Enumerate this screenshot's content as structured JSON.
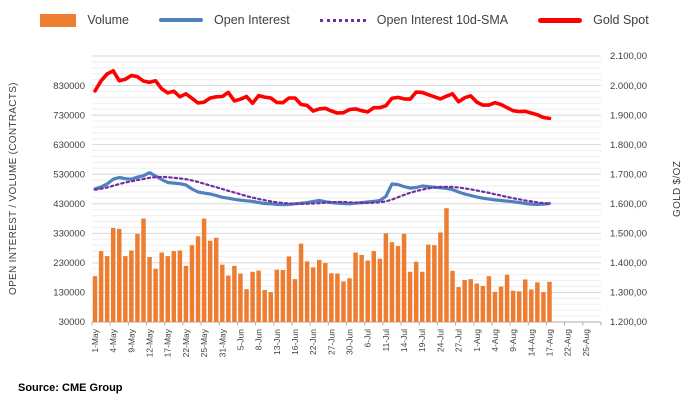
{
  "source": "Source: CME Group",
  "colors": {
    "grid_major": "#D8D8D8",
    "grid_minor": "#EEEEEE",
    "axis_line": "#ADADAD",
    "tick_text": "#404040",
    "legend_text": "#3f3f3f"
  },
  "chart_data": {
    "type": "combo",
    "title": "",
    "legend_position": "top",
    "grid": true,
    "x_axis_total_slots": 84,
    "x_tick_every": 3,
    "x_tick_labels": [
      "1-May",
      "4-May",
      "9-May",
      "12-May",
      "17-May",
      "22-May",
      "25-May",
      "31-May",
      "5-Jun",
      "8-Jun",
      "13-Jun",
      "16-Jun",
      "22-Jun",
      "27-Jun",
      "30-Jun",
      "6-Jul",
      "11-Jul",
      "14-Jul",
      "19-Jul",
      "24-Jul",
      "27-Jul",
      "1-Aug",
      "4-Aug",
      "9-Aug",
      "14-Aug",
      "17-Aug",
      "22-Aug",
      "25-Aug"
    ],
    "x": [
      "1-May",
      "2-May",
      "3-May",
      "4-May",
      "5-May",
      "8-May",
      "9-May",
      "10-May",
      "11-May",
      "12-May",
      "15-May",
      "16-May",
      "17-May",
      "18-May",
      "19-May",
      "22-May",
      "23-May",
      "24-May",
      "25-May",
      "26-May",
      "30-May",
      "31-May",
      "1-Jun",
      "2-Jun",
      "5-Jun",
      "6-Jun",
      "7-Jun",
      "8-Jun",
      "9-Jun",
      "12-Jun",
      "13-Jun",
      "14-Jun",
      "15-Jun",
      "16-Jun",
      "20-Jun",
      "21-Jun",
      "22-Jun",
      "23-Jun",
      "26-Jun",
      "27-Jun",
      "28-Jun",
      "29-Jun",
      "30-Jun",
      "3-Jul",
      "5-Jul",
      "6-Jul",
      "7-Jul",
      "10-Jul",
      "11-Jul",
      "12-Jul",
      "13-Jul",
      "14-Jul",
      "17-Jul",
      "18-Jul",
      "19-Jul",
      "20-Jul",
      "21-Jul",
      "24-Jul",
      "25-Jul",
      "26-Jul",
      "27-Jul",
      "28-Jul",
      "31-Jul",
      "1-Aug",
      "2-Aug",
      "3-Aug",
      "4-Aug",
      "7-Aug",
      "8-Aug",
      "9-Aug",
      "10-Aug",
      "11-Aug",
      "14-Aug",
      "15-Aug",
      "16-Aug",
      "17-Aug"
    ],
    "y_left": {
      "label": "OPEN INTEREST / VOLUME (CONTRACTS)",
      "min": 30000,
      "max": 930000,
      "major_step": 100000,
      "minor_step": 20000,
      "tick_labels": [
        "830000",
        "730000",
        "630000",
        "530000",
        "430000",
        "330000",
        "230000",
        "130000",
        "30000"
      ]
    },
    "y_right": {
      "label": "GOLD $/OZ",
      "min": 1200,
      "max": 2100,
      "major_step": 100,
      "tick_labels": [
        "2.100,00",
        "2.000,00",
        "1.900,00",
        "1.800,00",
        "1.700,00",
        "1.600,00",
        "1.500,00",
        "1.400,00",
        "1.300,00",
        "1.200,00"
      ]
    },
    "series": [
      {
        "name": "Volume",
        "type": "bar",
        "axis": "left",
        "color": "#ED7D31",
        "values": [
          185000,
          270000,
          253000,
          348000,
          345000,
          253000,
          272000,
          328000,
          380000,
          250000,
          210000,
          265000,
          253000,
          270000,
          272000,
          220000,
          290000,
          320000,
          380000,
          305000,
          315000,
          224000,
          187000,
          220000,
          194000,
          141000,
          200000,
          204000,
          138000,
          131000,
          207000,
          206000,
          252000,
          175000,
          295000,
          235000,
          215000,
          240000,
          230000,
          195000,
          194000,
          167000,
          178000,
          265000,
          257000,
          238000,
          270000,
          244000,
          330000,
          300000,
          287000,
          328000,
          200000,
          234000,
          200000,
          292000,
          290000,
          333000,
          415000,
          203000,
          148000,
          172000,
          175000,
          160000,
          152000,
          185000,
          132000,
          150000,
          190000,
          136000,
          134000,
          174000,
          140000,
          164000,
          131000,
          166000
        ]
      },
      {
        "name": "Open Interest",
        "type": "line",
        "axis": "left",
        "color": "#4F81BD",
        "values": [
          480000,
          487000,
          497000,
          513000,
          519000,
          515000,
          513000,
          520000,
          525000,
          535000,
          524000,
          512000,
          502000,
          500000,
          498000,
          494000,
          480000,
          470000,
          466000,
          463000,
          458000,
          452000,
          449000,
          445000,
          442000,
          440000,
          438000,
          434000,
          431000,
          430000,
          428000,
          427000,
          428000,
          430000,
          432000,
          434000,
          438000,
          441000,
          437000,
          434000,
          432000,
          431000,
          430000,
          432000,
          434000,
          436000,
          438000,
          441000,
          455000,
          497000,
          495000,
          488000,
          483000,
          485000,
          490000,
          488000,
          486000,
          484000,
          482000,
          478000,
          470000,
          463000,
          458000,
          453000,
          449000,
          446000,
          443000,
          441000,
          439000,
          437000,
          434000,
          431000,
          429000,
          428000,
          429000,
          431000
        ]
      },
      {
        "name": "Open Interest 10d-SMA",
        "type": "dotted-line",
        "axis": "left",
        "color": "#7030A0",
        "values": [
          478000,
          481000,
          485000,
          491000,
          497000,
          502000,
          506000,
          510000,
          514000,
          518000,
          520000,
          521000,
          520000,
          518000,
          516000,
          513000,
          509000,
          504000,
          498000,
          492000,
          486000,
          480000,
          474000,
          468000,
          462000,
          456000,
          451000,
          446000,
          442000,
          438000,
          435000,
          433000,
          431000,
          430000,
          430000,
          430000,
          431000,
          432000,
          434000,
          435000,
          436000,
          436000,
          435000,
          434000,
          433000,
          433000,
          434000,
          435000,
          438000,
          444000,
          452000,
          460000,
          467000,
          473000,
          478000,
          482000,
          485000,
          487000,
          487000,
          487000,
          485000,
          482000,
          479000,
          475000,
          471000,
          467000,
          462000,
          458000,
          453000,
          449000,
          445000,
          441000,
          438000,
          435000,
          432000,
          430000
        ]
      },
      {
        "name": "Gold Spot",
        "type": "line",
        "axis": "right",
        "color": "#FF0000",
        "values": [
          1982,
          2016,
          2039,
          2050,
          2016,
          2021,
          2034,
          2030,
          2015,
          2011,
          2016,
          1989,
          1975,
          1981,
          1962,
          1972,
          1957,
          1941,
          1944,
          1958,
          1962,
          1963,
          1977,
          1948,
          1954,
          1963,
          1940,
          1966,
          1961,
          1958,
          1943,
          1942,
          1958,
          1958,
          1936,
          1933,
          1914,
          1921,
          1923,
          1914,
          1907,
          1908,
          1919,
          1921,
          1915,
          1911,
          1925,
          1925,
          1932,
          1957,
          1960,
          1955,
          1954,
          1978,
          1977,
          1969,
          1962,
          1955,
          1964,
          1972,
          1945,
          1959,
          1965,
          1944,
          1934,
          1934,
          1942,
          1936,
          1925,
          1915,
          1912,
          1913,
          1907,
          1901,
          1892,
          1889
        ]
      }
    ]
  }
}
